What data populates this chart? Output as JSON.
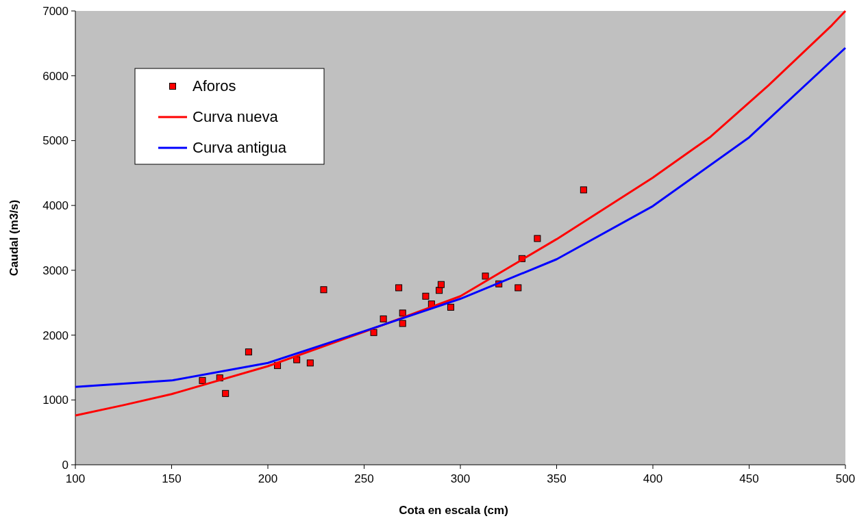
{
  "chart_data": {
    "type": "line",
    "xlabel": "Cota en escala (cm)",
    "ylabel": "Caudal (m3/s)",
    "xlim": [
      100,
      500
    ],
    "xticks": [
      100,
      150,
      200,
      250,
      300,
      350,
      400,
      450,
      500
    ],
    "ylim": [
      0,
      7000
    ],
    "yticks": [
      0,
      1000,
      2000,
      3000,
      4000,
      5000,
      6000,
      7000
    ],
    "grid": false,
    "legend": "top left",
    "series": [
      {
        "name": "Aforos",
        "type": "scatter",
        "marker": "square",
        "color": "#ff0000",
        "x": [
          166,
          175,
          178,
          190,
          205,
          215,
          222,
          229,
          255,
          260,
          268,
          270,
          270,
          282,
          285,
          289,
          290,
          295,
          313,
          320,
          330,
          332,
          340,
          364
        ],
        "values": [
          1300,
          1340,
          1100,
          1740,
          1530,
          1620,
          1570,
          2700,
          2040,
          2250,
          2730,
          2340,
          2180,
          2600,
          2480,
          2690,
          2780,
          2430,
          2910,
          2790,
          2730,
          3180,
          3490,
          4240
        ]
      },
      {
        "name": "Curva nueva",
        "marker": "none",
        "color": "#ff0000",
        "x": [
          100,
          125,
          150,
          200,
          250,
          300,
          350,
          400,
          430,
          460,
          493,
          500
        ],
        "values": [
          760,
          920,
          1090,
          1520,
          2050,
          2600,
          3480,
          4430,
          5060,
          5850,
          6780,
          7000
        ]
      },
      {
        "name": "Curva antigua",
        "marker": "none",
        "color": "#0000ff",
        "x": [
          100,
          150,
          200,
          250,
          300,
          350,
          400,
          450,
          500
        ],
        "values": [
          1200,
          1300,
          1570,
          2060,
          2560,
          3170,
          3990,
          5050,
          6430
        ]
      }
    ]
  }
}
